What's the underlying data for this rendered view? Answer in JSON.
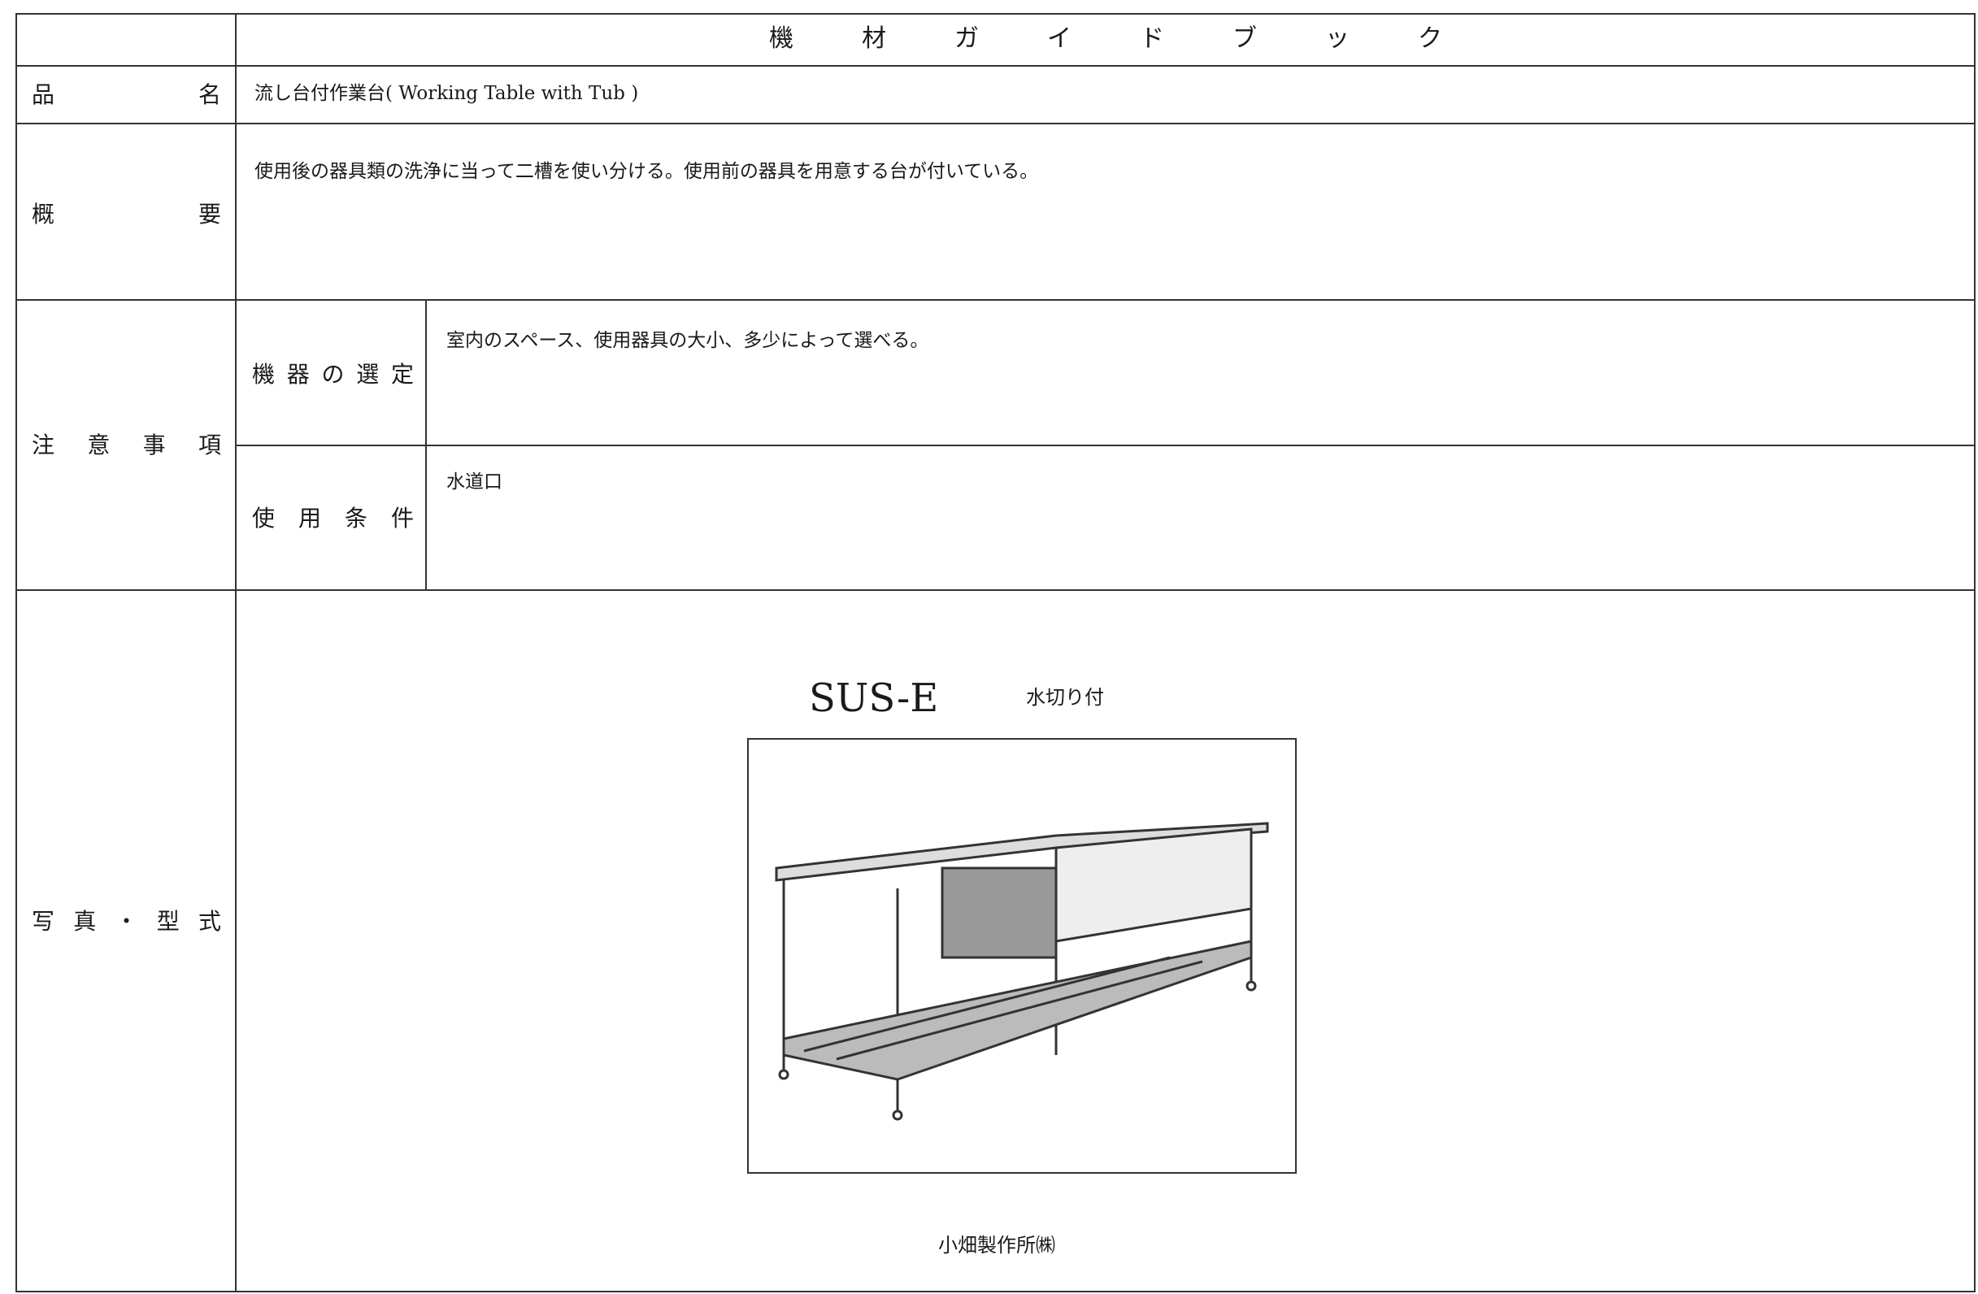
{
  "header": {
    "title": "機材ガイドブック"
  },
  "rows": [
    {
      "label": "品名",
      "value": "流し台付作業台( Working Table with Tub )"
    },
    {
      "label": "概要",
      "value": "使用後の器具類の洗浄に当って二槽を使い分ける。使用前の器具を用意する台が付いている。"
    },
    {
      "label": "注意事項",
      "items": [
        {
          "label": "機器の選定",
          "value": "室内のスペース、使用器具の大小、多少によって選べる。"
        },
        {
          "label": "使用条件",
          "value": "水道口"
        }
      ]
    },
    {
      "label": "写真・型式",
      "model": "SUS-E",
      "model_note": "水切り付",
      "maker": "小畑製作所㈱"
    }
  ]
}
